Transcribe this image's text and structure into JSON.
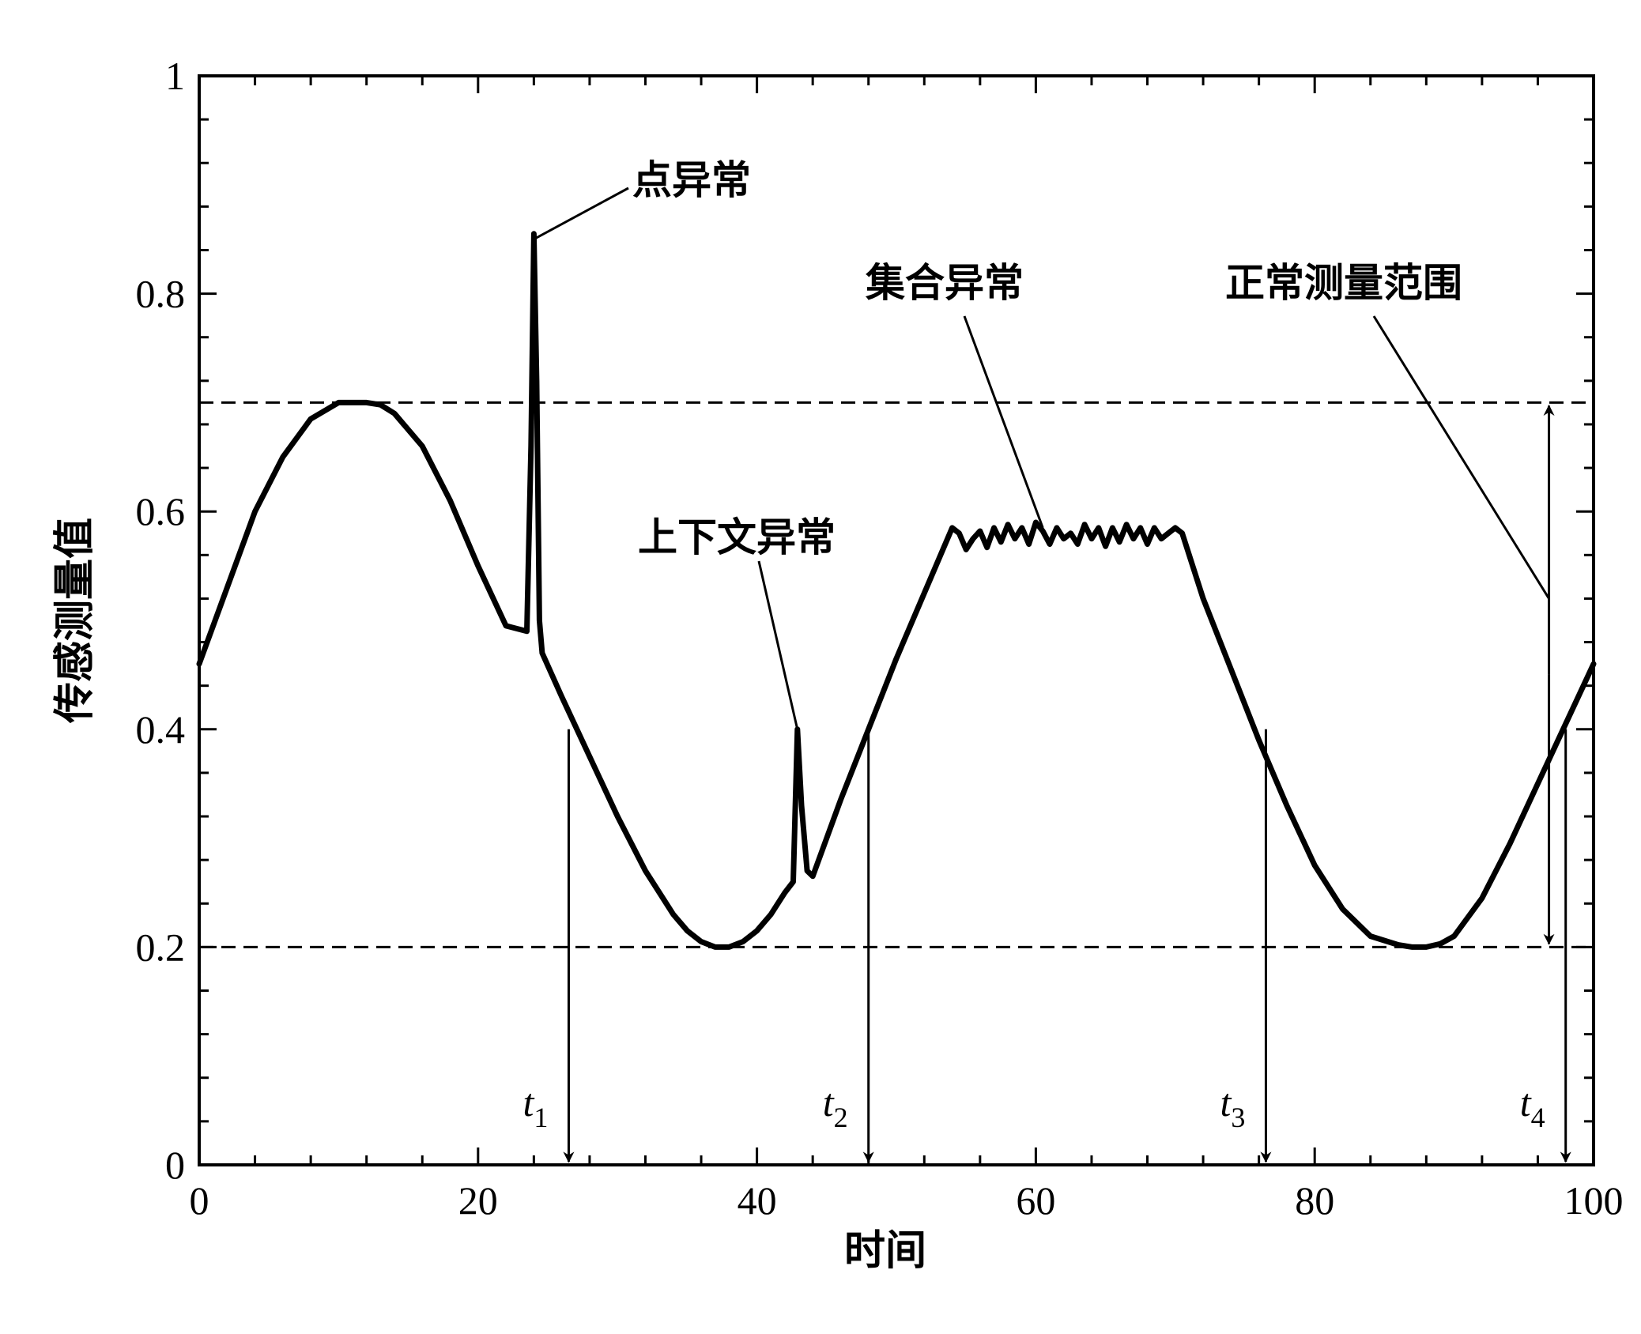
{
  "chart_data": {
    "type": "line",
    "title": "",
    "xlabel": "时间",
    "ylabel": "传感测量值",
    "xlim": [
      0,
      100
    ],
    "ylim": [
      0,
      1
    ],
    "x_ticks": [
      0,
      20,
      40,
      60,
      80,
      100
    ],
    "x_tick_labels": [
      "0",
      "20",
      "40",
      "60",
      "80",
      "100"
    ],
    "y_ticks": [
      0,
      0.2,
      0.4,
      0.6,
      0.8,
      1
    ],
    "y_tick_labels": [
      "0",
      "0.2",
      "0.4",
      "0.6",
      "0.8",
      "1"
    ],
    "grid": false,
    "series": [
      {
        "x": [
          0,
          2,
          4,
          6,
          8,
          10,
          12,
          13,
          14,
          16,
          18,
          20,
          22,
          23.5,
          23.8,
          24.0,
          24.2,
          24.4,
          24.6,
          26,
          28,
          30,
          32,
          34,
          35,
          36,
          37,
          38,
          39,
          40,
          41,
          42,
          42.6,
          42.9,
          43.2,
          43.6,
          44.0,
          46,
          48,
          50,
          52,
          54,
          54.5,
          55,
          55.5,
          56,
          56.5,
          57,
          57.5,
          58,
          58.5,
          59,
          59.5,
          60,
          60.5,
          61,
          61.5,
          62,
          62.5,
          63,
          63.5,
          64,
          64.5,
          65,
          65.5,
          66,
          66.5,
          67,
          67.5,
          68,
          68.5,
          69,
          69.5,
          70,
          70.5,
          72,
          74,
          76,
          78,
          80,
          82,
          84,
          86,
          87,
          88,
          89,
          90,
          92,
          94,
          96,
          98,
          100
        ],
        "y": [
          0.46,
          0.53,
          0.6,
          0.65,
          0.685,
          0.7,
          0.7,
          0.698,
          0.69,
          0.66,
          0.61,
          0.55,
          0.495,
          0.49,
          0.66,
          0.855,
          0.72,
          0.5,
          0.47,
          0.43,
          0.375,
          0.32,
          0.27,
          0.23,
          0.215,
          0.205,
          0.2,
          0.2,
          0.205,
          0.215,
          0.23,
          0.25,
          0.26,
          0.4,
          0.33,
          0.27,
          0.265,
          0.335,
          0.4,
          0.465,
          0.525,
          0.585,
          0.58,
          0.565,
          0.575,
          0.582,
          0.567,
          0.585,
          0.572,
          0.588,
          0.575,
          0.585,
          0.57,
          0.59,
          0.582,
          0.57,
          0.585,
          0.575,
          0.58,
          0.57,
          0.588,
          0.575,
          0.585,
          0.568,
          0.585,
          0.572,
          0.588,
          0.575,
          0.585,
          0.57,
          0.585,
          0.575,
          0.58,
          0.585,
          0.58,
          0.52,
          0.455,
          0.39,
          0.33,
          0.275,
          0.235,
          0.21,
          0.202,
          0.2,
          0.2,
          0.203,
          0.21,
          0.245,
          0.295,
          0.35,
          0.405,
          0.46
        ]
      }
    ],
    "reference_lines": [
      {
        "y": 0.7,
        "style": "dashed"
      },
      {
        "y": 0.2,
        "style": "dashed"
      }
    ],
    "time_markers": [
      {
        "label": "t",
        "subscript": "1",
        "x": 26.5,
        "y_start": 0.4
      },
      {
        "label": "t",
        "subscript": "2",
        "x": 48,
        "y_start": 0.4
      },
      {
        "label": "t",
        "subscript": "3",
        "x": 76.5,
        "y_start": 0.4
      },
      {
        "label": "t",
        "subscript": "4",
        "x": 98,
        "y_start": 0.4
      }
    ],
    "annotations": [
      {
        "text": "点异常",
        "target_x": 24.0,
        "target_y": 0.85
      },
      {
        "text": "上下文异常",
        "target_x": 42.9,
        "target_y": 0.4
      },
      {
        "text": "集合异常",
        "target_x": 60.5,
        "target_y": 0.585
      },
      {
        "text": "正常测量范围",
        "target_x": 96.8,
        "target_y": 0.52
      }
    ],
    "range_arrow": {
      "x": 96.8,
      "from": 0.2,
      "to": 0.7
    }
  }
}
